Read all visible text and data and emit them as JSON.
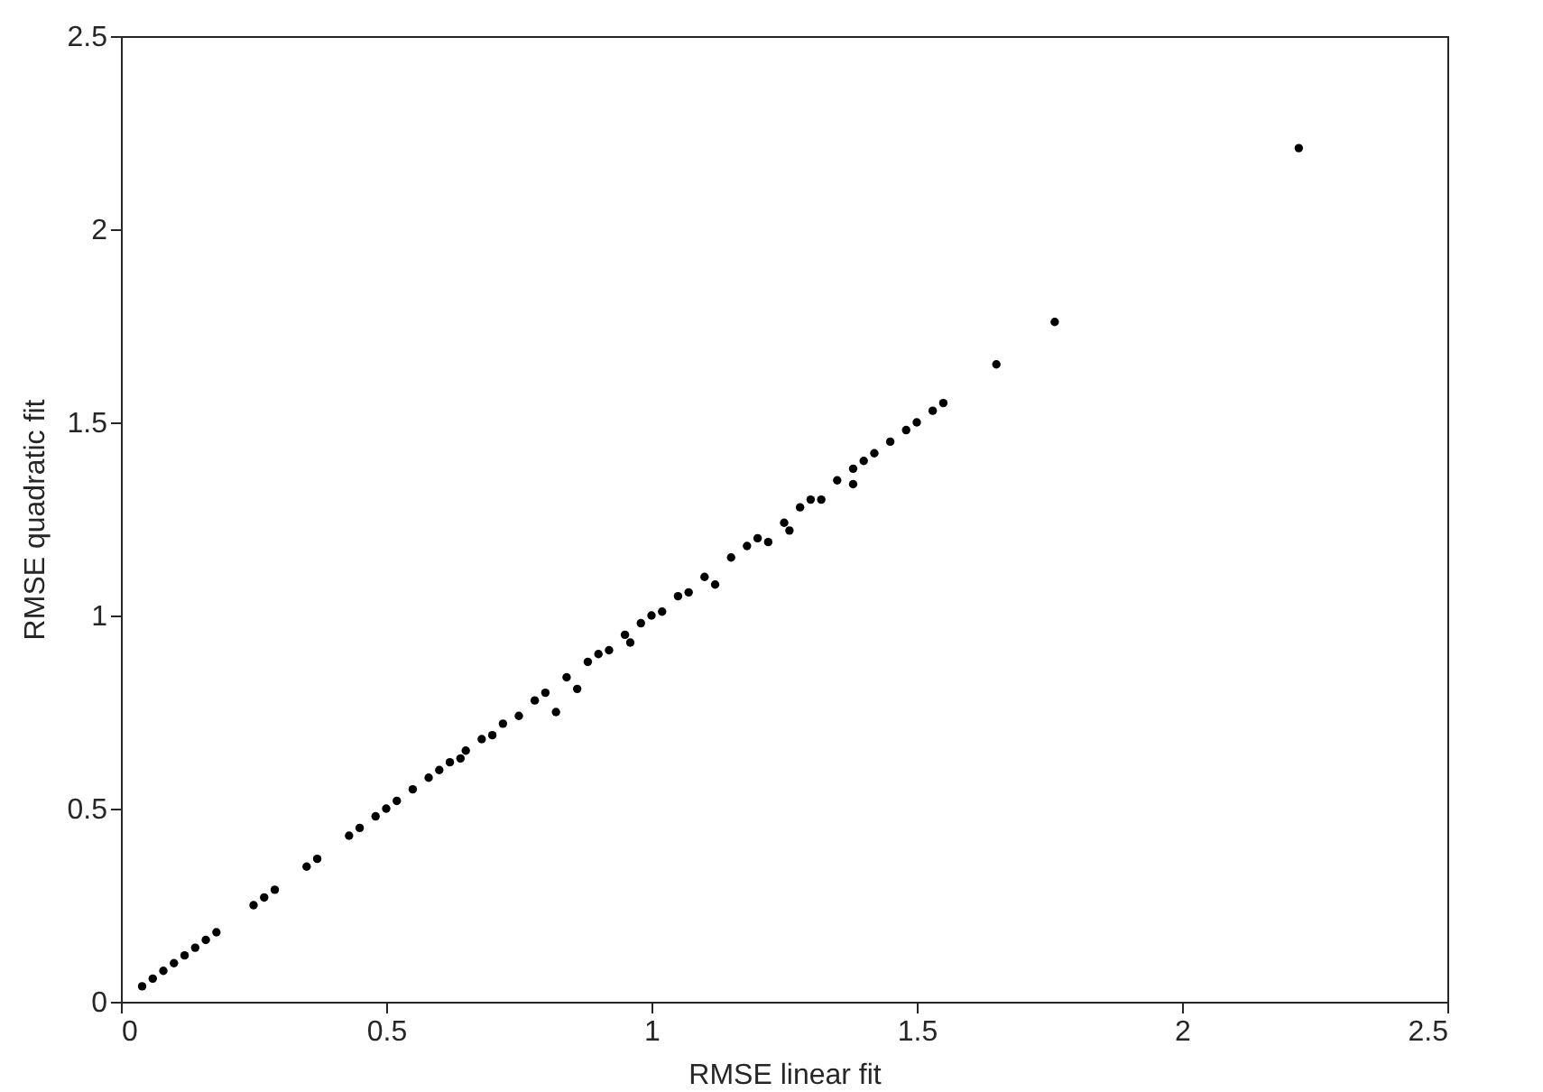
{
  "chart_data": {
    "type": "scatter",
    "xlabel": "RMSE linear fit",
    "ylabel": "RMSE quadratic fit",
    "x": [
      0.04,
      0.06,
      0.08,
      0.1,
      0.12,
      0.14,
      0.16,
      0.18,
      0.25,
      0.27,
      0.29,
      0.35,
      0.37,
      0.43,
      0.45,
      0.48,
      0.5,
      0.52,
      0.55,
      0.58,
      0.6,
      0.62,
      0.64,
      0.65,
      0.68,
      0.7,
      0.72,
      0.75,
      0.78,
      0.8,
      0.82,
      0.84,
      0.86,
      0.88,
      0.9,
      0.92,
      0.95,
      0.96,
      0.98,
      1.0,
      1.02,
      1.05,
      1.07,
      1.1,
      1.12,
      1.15,
      1.18,
      1.2,
      1.22,
      1.25,
      1.26,
      1.28,
      1.3,
      1.32,
      1.35,
      1.38,
      1.38,
      1.4,
      1.42,
      1.45,
      1.48,
      1.5,
      1.53,
      1.55,
      1.65,
      1.76,
      2.22
    ],
    "series": [
      {
        "color": "#000000",
        "values": [
          0.04,
          0.06,
          0.08,
          0.1,
          0.12,
          0.14,
          0.16,
          0.18,
          0.25,
          0.27,
          0.29,
          0.35,
          0.37,
          0.43,
          0.45,
          0.48,
          0.5,
          0.52,
          0.55,
          0.58,
          0.6,
          0.62,
          0.63,
          0.65,
          0.68,
          0.69,
          0.72,
          0.74,
          0.78,
          0.8,
          0.75,
          0.84,
          0.81,
          0.88,
          0.9,
          0.91,
          0.95,
          0.93,
          0.98,
          1.0,
          1.01,
          1.05,
          1.06,
          1.1,
          1.08,
          1.15,
          1.18,
          1.2,
          1.19,
          1.24,
          1.22,
          1.28,
          1.3,
          1.3,
          1.35,
          1.38,
          1.34,
          1.4,
          1.42,
          1.45,
          1.48,
          1.5,
          1.53,
          1.55,
          1.65,
          1.76,
          2.21
        ]
      }
    ],
    "marker": "circle",
    "xlim": [
      0,
      2.5
    ],
    "xticks": [
      0,
      0.5,
      1,
      1.5,
      2,
      2.5
    ],
    "ylim": [
      0,
      2.5
    ],
    "yticks": [
      0,
      0.5,
      1,
      1.5,
      2,
      2.5
    ]
  }
}
